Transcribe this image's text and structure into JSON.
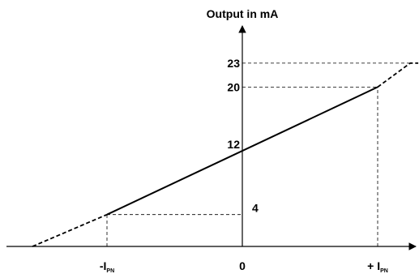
{
  "chart_data": {
    "type": "line",
    "title": "",
    "ylabel": "Output in mA",
    "xlabel": "",
    "x_ticks": [
      {
        "value": -1,
        "label": "-I",
        "sub": "PN"
      },
      {
        "value": 0,
        "label": "0",
        "sub": ""
      },
      {
        "value": 1,
        "label": "+ I",
        "sub": "PN"
      }
    ],
    "y_ticks": [
      4,
      12,
      20,
      23
    ],
    "series": [
      {
        "segments": [
          {
            "style": "dashed",
            "points": [
              [
                -1.55,
                0
              ],
              [
                -1,
                4
              ]
            ]
          },
          {
            "style": "solid",
            "points": [
              [
                -1,
                4
              ],
              [
                1,
                20
              ]
            ]
          },
          {
            "style": "dashed",
            "points": [
              [
                1,
                20
              ],
              [
                1.24,
                23
              ],
              [
                1.3,
                23
              ]
            ]
          }
        ]
      }
    ],
    "reference_lines": [
      {
        "from": [
          -1,
          0
        ],
        "to": [
          -1,
          4
        ]
      },
      {
        "from": [
          -1,
          4
        ],
        "to": [
          0,
          4
        ]
      },
      {
        "from": [
          1,
          0
        ],
        "to": [
          1,
          20
        ]
      },
      {
        "from": [
          0,
          20
        ],
        "to": [
          1,
          20
        ]
      },
      {
        "from": [
          0,
          23
        ],
        "to": [
          1.24,
          23
        ]
      }
    ],
    "xlim": [
      -1.8,
      1.3
    ],
    "ylim": [
      0,
      27
    ],
    "grid": false,
    "legend": "none",
    "line_color": "#000000"
  }
}
